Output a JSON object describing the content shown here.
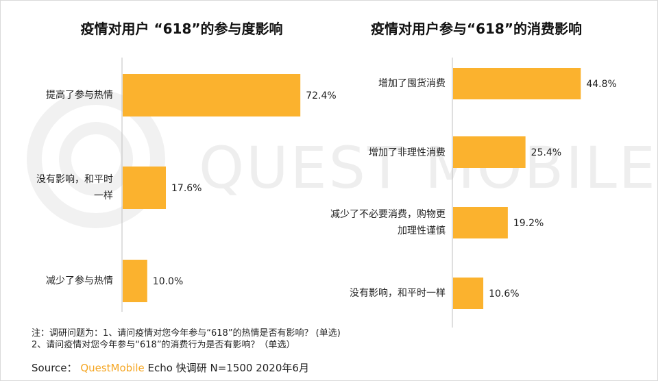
{
  "watermark": {
    "text": "QUEST MOBILE"
  },
  "charts": {
    "left_title": "疫情对用户 “618”的参与度影响",
    "right_title": "疫情对用户参与“618”的消费影响"
  },
  "chart_data": [
    {
      "type": "bar",
      "orientation": "horizontal",
      "title": "疫情对用户 “618”的参与度影响",
      "categories": [
        "提高了参与热情",
        "没有影响，和平时一样",
        "减少了参与热情"
      ],
      "values": [
        72.4,
        17.6,
        10.0
      ],
      "value_labels": [
        "72.4%",
        "17.6%",
        "10.0%"
      ],
      "unit": "%",
      "xlim": [
        0,
        100
      ],
      "bar_color": "#fbb22e",
      "grid": false
    },
    {
      "type": "bar",
      "orientation": "horizontal",
      "title": "疫情对用户参与“618”的消费影响",
      "categories": [
        "增加了囤货消费",
        "增加了非理性消费",
        "减少了不必要消费，购物更加理性谨慎",
        "没有影响，和平时一样"
      ],
      "values": [
        44.8,
        25.4,
        19.2,
        10.6
      ],
      "value_labels": [
        "44.8%",
        "25.4%",
        "19.2%",
        "10.6%"
      ],
      "unit": "%",
      "xlim": [
        0,
        100
      ],
      "bar_color": "#fbb22e",
      "grid": false
    }
  ],
  "notes": {
    "line1": "注：调研问题为：1、请问疫情对您今年参与“618”的热情是否有影响？ (单选)",
    "line2": "2、请问疫情对您今年参与“618”的消费行为是否有影响？（单选）"
  },
  "source": {
    "prefix": "Source：",
    "brand": "QuestMobile",
    "suffix": " Echo 快调研 N=1500 2020年6月"
  }
}
